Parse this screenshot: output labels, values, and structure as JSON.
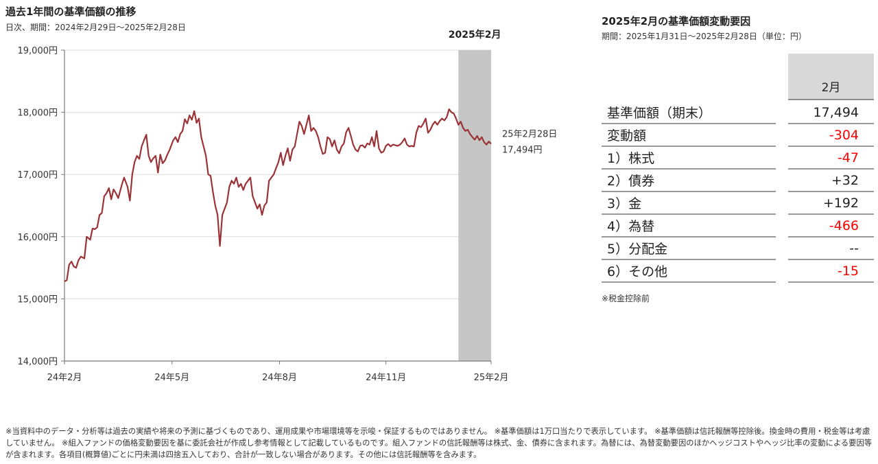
{
  "left_chart": {
    "title": "過去1年間の基準価額の推移",
    "subtitle": "日次、期間：2024年2月29日～2025年2月28日",
    "highlight_label": "2025年2月",
    "end_label_date": "25年2月28日",
    "end_label_value": "17,494円",
    "colors": {
      "line": "#9b3236",
      "highlight": "#c6c6c6",
      "grid": "#dcdcdc",
      "axis": "#7a7a7a"
    }
  },
  "chart_data": {
    "type": "line",
    "title": "過去1年間の基準価額の推移",
    "xlabel": "",
    "ylabel": "",
    "ylim": [
      14000,
      19000
    ],
    "y_ticks": [
      {
        "value": 14000,
        "label": "14,000円"
      },
      {
        "value": 15000,
        "label": "15,000円"
      },
      {
        "value": 16000,
        "label": "16,000円"
      },
      {
        "value": 17000,
        "label": "17,000円"
      },
      {
        "value": 18000,
        "label": "18,000円"
      },
      {
        "value": 19000,
        "label": "19,000円"
      }
    ],
    "x_range": [
      "2024-02-29",
      "2025-02-28"
    ],
    "x_ticks": [
      {
        "date": "2024-02-29",
        "label": "24年2月"
      },
      {
        "date": "2024-05-31",
        "label": "24年5月"
      },
      {
        "date": "2024-08-31",
        "label": "24年8月"
      },
      {
        "date": "2024-11-30",
        "label": "24年11月"
      },
      {
        "date": "2025-02-28",
        "label": "25年2月"
      }
    ],
    "highlight_range": [
      "2025-01-31",
      "2025-02-28"
    ],
    "grid": true,
    "series": [
      {
        "values": [
          [
            "2024-02-29",
            15280
          ],
          [
            "2024-03-02",
            15300
          ],
          [
            "2024-03-04",
            15550
          ],
          [
            "2024-03-06",
            15600
          ],
          [
            "2024-03-08",
            15520
          ],
          [
            "2024-03-10",
            15500
          ],
          [
            "2024-03-12",
            15620
          ],
          [
            "2024-03-14",
            15680
          ],
          [
            "2024-03-17",
            15650
          ],
          [
            "2024-03-19",
            16000
          ],
          [
            "2024-03-22",
            15950
          ],
          [
            "2024-03-24",
            16130
          ],
          [
            "2024-03-26",
            16120
          ],
          [
            "2024-03-28",
            16150
          ],
          [
            "2024-03-30",
            16350
          ],
          [
            "2024-04-01",
            16380
          ],
          [
            "2024-04-03",
            16650
          ],
          [
            "2024-04-05",
            16700
          ],
          [
            "2024-04-07",
            16780
          ],
          [
            "2024-04-09",
            16600
          ],
          [
            "2024-04-11",
            16760
          ],
          [
            "2024-04-13",
            16700
          ],
          [
            "2024-04-15",
            16620
          ],
          [
            "2024-04-18",
            16830
          ],
          [
            "2024-04-20",
            16950
          ],
          [
            "2024-04-23",
            16800
          ],
          [
            "2024-04-25",
            16580
          ],
          [
            "2024-04-27",
            17000
          ],
          [
            "2024-04-29",
            17200
          ],
          [
            "2024-05-01",
            17300
          ],
          [
            "2024-05-03",
            17250
          ],
          [
            "2024-05-05",
            17450
          ],
          [
            "2024-05-07",
            17550
          ],
          [
            "2024-05-09",
            17640
          ],
          [
            "2024-05-11",
            17300
          ],
          [
            "2024-05-13",
            17200
          ],
          [
            "2024-05-15",
            17260
          ],
          [
            "2024-05-17",
            17300
          ],
          [
            "2024-05-19",
            17030
          ],
          [
            "2024-05-21",
            17320
          ],
          [
            "2024-05-23",
            17180
          ],
          [
            "2024-05-25",
            17230
          ],
          [
            "2024-05-27",
            17320
          ],
          [
            "2024-05-29",
            17400
          ],
          [
            "2024-06-01",
            17550
          ],
          [
            "2024-06-03",
            17600
          ],
          [
            "2024-06-05",
            17520
          ],
          [
            "2024-06-07",
            17650
          ],
          [
            "2024-06-09",
            17700
          ],
          [
            "2024-06-11",
            17890
          ],
          [
            "2024-06-13",
            17820
          ],
          [
            "2024-06-15",
            17950
          ],
          [
            "2024-06-17",
            17880
          ],
          [
            "2024-06-19",
            18020
          ],
          [
            "2024-06-21",
            17830
          ],
          [
            "2024-06-23",
            17900
          ],
          [
            "2024-06-25",
            17600
          ],
          [
            "2024-06-27",
            17450
          ],
          [
            "2024-06-29",
            17300
          ],
          [
            "2024-07-01",
            17000
          ],
          [
            "2024-07-03",
            16980
          ],
          [
            "2024-07-05",
            16720
          ],
          [
            "2024-07-07",
            16500
          ],
          [
            "2024-07-09",
            16350
          ],
          [
            "2024-07-11",
            15850
          ],
          [
            "2024-07-13",
            16350
          ],
          [
            "2024-07-15",
            16450
          ],
          [
            "2024-07-17",
            16550
          ],
          [
            "2024-07-19",
            16800
          ],
          [
            "2024-07-21",
            16900
          ],
          [
            "2024-07-23",
            16850
          ],
          [
            "2024-07-25",
            16950
          ],
          [
            "2024-07-27",
            16800
          ],
          [
            "2024-07-29",
            16850
          ],
          [
            "2024-07-31",
            16750
          ],
          [
            "2024-08-02",
            16850
          ],
          [
            "2024-08-04",
            16900
          ],
          [
            "2024-08-06",
            16950
          ],
          [
            "2024-08-08",
            16650
          ],
          [
            "2024-08-10",
            16550
          ],
          [
            "2024-08-12",
            16450
          ],
          [
            "2024-08-14",
            16520
          ],
          [
            "2024-08-16",
            16350
          ],
          [
            "2024-08-18",
            16500
          ],
          [
            "2024-08-20",
            16550
          ],
          [
            "2024-08-22",
            16900
          ],
          [
            "2024-08-24",
            16950
          ],
          [
            "2024-08-26",
            17000
          ],
          [
            "2024-08-28",
            17100
          ],
          [
            "2024-08-30",
            17200
          ],
          [
            "2024-09-01",
            17350
          ],
          [
            "2024-09-03",
            17150
          ],
          [
            "2024-09-05",
            17300
          ],
          [
            "2024-09-07",
            17420
          ],
          [
            "2024-09-09",
            17220
          ],
          [
            "2024-09-11",
            17400
          ],
          [
            "2024-09-13",
            17450
          ],
          [
            "2024-09-15",
            17650
          ],
          [
            "2024-09-17",
            17850
          ],
          [
            "2024-09-19",
            17780
          ],
          [
            "2024-09-21",
            17650
          ],
          [
            "2024-09-23",
            17800
          ],
          [
            "2024-09-25",
            17950
          ],
          [
            "2024-09-27",
            17700
          ],
          [
            "2024-09-29",
            17750
          ],
          [
            "2024-10-01",
            17700
          ],
          [
            "2024-10-03",
            17600
          ],
          [
            "2024-10-05",
            17450
          ],
          [
            "2024-10-07",
            17330
          ],
          [
            "2024-10-09",
            17350
          ],
          [
            "2024-10-11",
            17600
          ],
          [
            "2024-10-13",
            17570
          ],
          [
            "2024-10-15",
            17450
          ],
          [
            "2024-10-17",
            17550
          ],
          [
            "2024-10-19",
            17400
          ],
          [
            "2024-10-21",
            17340
          ],
          [
            "2024-10-23",
            17450
          ],
          [
            "2024-10-25",
            17500
          ],
          [
            "2024-10-27",
            17680
          ],
          [
            "2024-10-29",
            17750
          ],
          [
            "2024-10-31",
            17620
          ],
          [
            "2024-11-02",
            17480
          ],
          [
            "2024-11-04",
            17400
          ],
          [
            "2024-11-06",
            17370
          ],
          [
            "2024-11-08",
            17460
          ],
          [
            "2024-11-10",
            17470
          ],
          [
            "2024-11-12",
            17430
          ],
          [
            "2024-11-14",
            17500
          ],
          [
            "2024-11-16",
            17480
          ],
          [
            "2024-11-18",
            17600
          ],
          [
            "2024-11-20",
            17450
          ],
          [
            "2024-11-22",
            17700
          ],
          [
            "2024-11-24",
            17420
          ],
          [
            "2024-11-26",
            17350
          ],
          [
            "2024-11-28",
            17370
          ],
          [
            "2024-11-30",
            17460
          ],
          [
            "2024-12-02",
            17490
          ],
          [
            "2024-12-04",
            17450
          ],
          [
            "2024-12-06",
            17480
          ],
          [
            "2024-12-08",
            17470
          ],
          [
            "2024-12-10",
            17460
          ],
          [
            "2024-12-12",
            17480
          ],
          [
            "2024-12-14",
            17520
          ],
          [
            "2024-12-16",
            17580
          ],
          [
            "2024-12-18",
            17480
          ],
          [
            "2024-12-20",
            17450
          ],
          [
            "2024-12-22",
            17460
          ],
          [
            "2024-12-24",
            17450
          ],
          [
            "2024-12-26",
            17670
          ],
          [
            "2024-12-28",
            17780
          ],
          [
            "2024-12-30",
            17760
          ],
          [
            "2025-01-01",
            17820
          ],
          [
            "2025-01-03",
            17900
          ],
          [
            "2025-01-05",
            17670
          ],
          [
            "2025-01-07",
            17720
          ],
          [
            "2025-01-09",
            17800
          ],
          [
            "2025-01-11",
            17850
          ],
          [
            "2025-01-13",
            17800
          ],
          [
            "2025-01-15",
            17860
          ],
          [
            "2025-01-17",
            17900
          ],
          [
            "2025-01-19",
            17870
          ],
          [
            "2025-01-21",
            17920
          ],
          [
            "2025-01-23",
            18050
          ],
          [
            "2025-01-25",
            18000
          ],
          [
            "2025-01-27",
            17980
          ],
          [
            "2025-01-29",
            17900
          ],
          [
            "2025-01-31",
            17798
          ],
          [
            "2025-02-02",
            17850
          ],
          [
            "2025-02-04",
            17750
          ],
          [
            "2025-02-06",
            17700
          ],
          [
            "2025-02-08",
            17720
          ],
          [
            "2025-02-10",
            17650
          ],
          [
            "2025-02-12",
            17600
          ],
          [
            "2025-02-14",
            17560
          ],
          [
            "2025-02-16",
            17620
          ],
          [
            "2025-02-18",
            17550
          ],
          [
            "2025-02-20",
            17600
          ],
          [
            "2025-02-22",
            17520
          ],
          [
            "2025-02-24",
            17480
          ],
          [
            "2025-02-26",
            17530
          ],
          [
            "2025-02-28",
            17494
          ]
        ]
      }
    ]
  },
  "right_table": {
    "title": "2025年2月の基準価額変動要因",
    "subtitle": "期間：2025年1月31日～2025年2月28日（単位：円）",
    "column_header": "2月",
    "rows": [
      {
        "label": "基準価額（期末）",
        "value": "17,494",
        "negative": false
      },
      {
        "label": "変動額",
        "value": "-304",
        "negative": true
      },
      {
        "label": "1）株式",
        "value": "-47",
        "negative": true
      },
      {
        "label": "2）債券",
        "value": "+32",
        "negative": false
      },
      {
        "label": "3）金",
        "value": "+192",
        "negative": false
      },
      {
        "label": "4）為替",
        "value": "-466",
        "negative": true
      },
      {
        "label": "5）分配金",
        "value": "--",
        "negative": false
      },
      {
        "label": "6）その他",
        "value": "-15",
        "negative": true
      }
    ],
    "note": "※税金控除前"
  },
  "footnote": "※当資料中のデータ・分析等は過去の実績や将来の予測に基づくものであり、運用成果や市場環境等を示唆・保証するものではありません。 ※基準価額は1万口当たりで表示しています。 ※基準価額は信託報酬等控除後。換金時の費用・税金等は考慮していません。 ※組入ファンドの価格変動要因を基に委託会社が作成し参考情報として記載しているものです。組入ファンドの信託報酬等は株式、金、債券に含まれます。為替には、為替変動要因のほかヘッジコストやヘッジ比率の変動による要因等が含まれます。各項目(概算値)ごとに円未満は四捨五入しており、合計が一致しない場合があります。その他には信託報酬等を含みます。"
}
